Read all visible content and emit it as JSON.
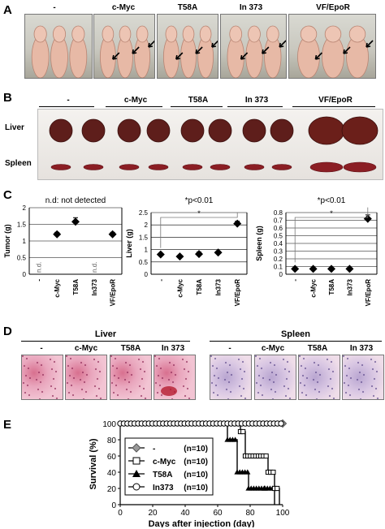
{
  "panels": {
    "a": "A",
    "b": "B",
    "c": "C",
    "d": "D",
    "e": "E"
  },
  "groups": [
    "-",
    "c-Myc",
    "T58A",
    "In 373",
    "VF/EpoR"
  ],
  "panel_b": {
    "liver_label": "Liver",
    "spleen_label": "Spleen"
  },
  "panel_c": {
    "tumor_note": "n.d: not detected",
    "sig_liver": "*p<0.01",
    "sig_spleen": "*p<0.01",
    "star": "*",
    "nd": "n.d."
  },
  "panel_d": {
    "liver_label": "Liver",
    "spleen_label": "Spleen"
  },
  "chart_data": [
    {
      "type": "scatter",
      "ylabel": "Tumor (g)",
      "categories": [
        "-",
        "c-Myc",
        "T58A",
        "In373",
        "VF/EpoR"
      ],
      "values": [
        null,
        1.2,
        1.58,
        null,
        1.2
      ],
      "errors": [
        null,
        0.06,
        0.12,
        null,
        0.06
      ],
      "not_detected": [
        "-",
        "In373"
      ],
      "ylim": [
        0,
        2
      ],
      "yticks": [
        "0",
        "0.5",
        "1",
        "1.5",
        "2"
      ]
    },
    {
      "type": "scatter",
      "ylabel": "Liver (g)",
      "categories": [
        "-",
        "c-Myc",
        "T58A",
        "In373",
        "VF/EpoR"
      ],
      "values": [
        0.8,
        0.72,
        0.82,
        0.88,
        2.05
      ],
      "errors": [
        0.05,
        0.05,
        0.08,
        0.05,
        0.1
      ],
      "ylim": [
        0,
        2.5
      ],
      "yticks": [
        "0",
        "0.5",
        "1",
        "1.5",
        "2",
        "2.5"
      ],
      "title": "*p<0.01"
    },
    {
      "type": "scatter",
      "ylabel": "Spleen (g)",
      "categories": [
        "-",
        "c-Myc",
        "T58A",
        "In373",
        "VF/EpoR"
      ],
      "values": [
        0.07,
        0.07,
        0.07,
        0.07,
        0.72
      ],
      "errors": [
        0.01,
        0.01,
        0.01,
        0.01,
        0.05
      ],
      "ylim": [
        0,
        0.8
      ],
      "yticks": [
        "0",
        "0.1",
        "0.2",
        "0.3",
        "0.4",
        "0.5",
        "0.6",
        "0.7",
        "0.8"
      ],
      "title": "*p<0.01"
    },
    {
      "type": "line",
      "xlabel": "Days after injection (day)",
      "ylabel": "Survival (%)",
      "xlim": [
        0,
        100
      ],
      "ylim": [
        0,
        100
      ],
      "xticks": [
        "0",
        "20",
        "40",
        "60",
        "80",
        "100"
      ],
      "yticks": [
        "0",
        "20",
        "40",
        "60",
        "80",
        "100"
      ],
      "series": [
        {
          "name": "-",
          "n": "(n=10)",
          "marker": "diamond",
          "x": [
            0,
            100
          ],
          "y": [
            100,
            100
          ]
        },
        {
          "name": "c-Myc",
          "n": "(n=10)",
          "marker": "square",
          "x": [
            0,
            74,
            74,
            77,
            77,
            91,
            91,
            95,
            95,
            98,
            98
          ],
          "y": [
            100,
            100,
            90,
            90,
            60,
            60,
            40,
            40,
            20,
            20,
            0
          ]
        },
        {
          "name": "T58A",
          "n": "(n=10)",
          "marker": "triangle",
          "x": [
            0,
            66,
            66,
            72,
            72,
            79,
            79,
            89,
            89,
            95,
            95
          ],
          "y": [
            100,
            100,
            80,
            80,
            40,
            40,
            20,
            20,
            20,
            20,
            0
          ]
        },
        {
          "name": "In373",
          "n": "(n=10)",
          "marker": "circle",
          "x": [
            0,
            100
          ],
          "y": [
            100,
            100
          ]
        }
      ]
    }
  ]
}
